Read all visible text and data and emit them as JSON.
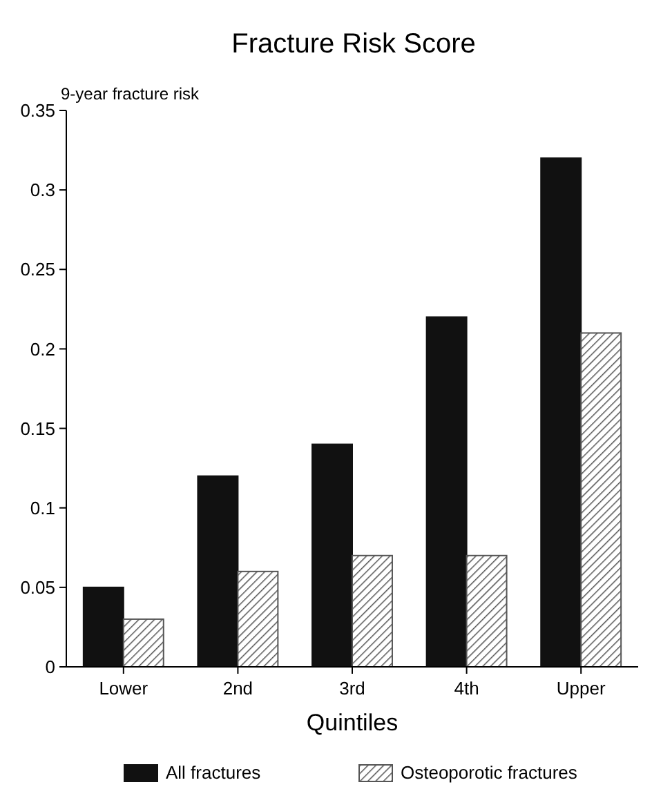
{
  "chart_data": {
    "type": "bar",
    "title": "Fracture Risk Score",
    "ylabel": "9-year fracture risk",
    "xlabel": "Quintiles",
    "categories": [
      "Lower",
      "2nd",
      "3rd",
      "4th",
      "Upper"
    ],
    "series": [
      {
        "name": "All fractures",
        "color": "#111111",
        "values": [
          0.05,
          0.12,
          0.14,
          0.22,
          0.32
        ]
      },
      {
        "name": "Osteoporotic fractures",
        "color": "#555555",
        "values": [
          0.03,
          0.06,
          0.07,
          0.07,
          0.21
        ]
      }
    ],
    "ylim": [
      0,
      0.35
    ],
    "yticks": [
      0,
      0.05,
      0.1,
      0.15,
      0.2,
      0.25,
      0.3,
      0.35
    ],
    "grid": false,
    "legend": "bottom"
  }
}
